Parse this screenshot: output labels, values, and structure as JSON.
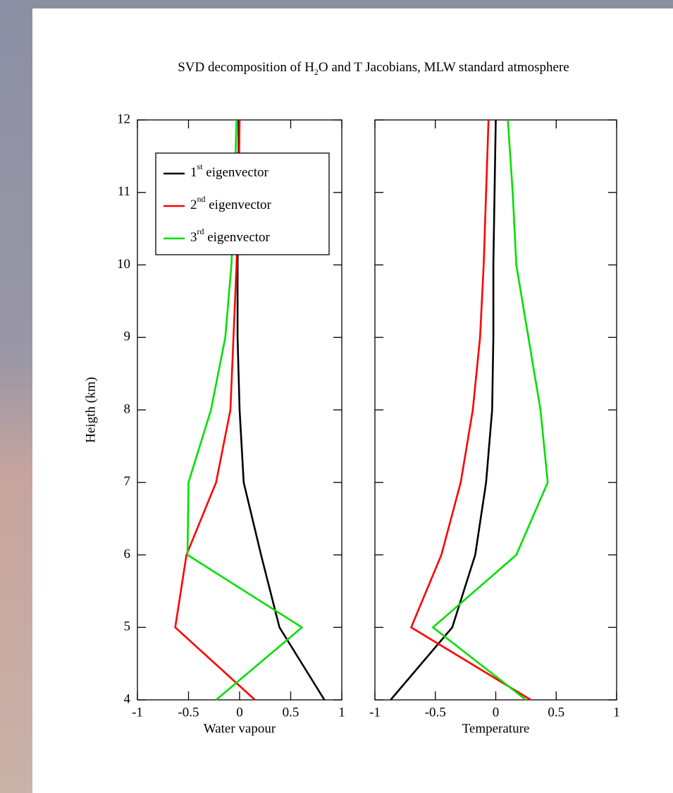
{
  "chart_data": [
    {
      "type": "line",
      "title": "SVD decomposition of H2O and T Jacobians, MLW standard atmosphere",
      "ylabel": "Heigth (km)",
      "xlabel": "Water vapour",
      "legend": "upper left",
      "y": [
        4,
        5,
        6,
        7,
        8,
        9,
        10,
        11,
        12
      ],
      "series": [
        {
          "name": "1st eigenvector",
          "color": "#000000",
          "values": [
            0.83,
            0.39,
            0.21,
            0.04,
            0,
            -0.02,
            -0.02,
            -0.01,
            -0.01
          ]
        },
        {
          "name": "2nd eigenvector",
          "color": "#ff0000",
          "values": [
            0.15,
            -0.63,
            -0.52,
            -0.23,
            -0.09,
            -0.06,
            -0.03,
            -0.01,
            0
          ]
        },
        {
          "name": "3rd eigenvector",
          "color": "#00e000",
          "values": [
            -0.23,
            0.61,
            -0.51,
            -0.5,
            -0.28,
            -0.14,
            -0.08,
            -0.05,
            -0.03
          ]
        }
      ],
      "xlim": [
        -1,
        1
      ],
      "xticks": [
        -1,
        -0.5,
        0,
        0.5,
        1
      ],
      "ylim": [
        4,
        12
      ],
      "yticks": [
        4,
        5,
        6,
        7,
        8,
        9,
        10,
        11,
        12
      ]
    },
    {
      "type": "line",
      "xlabel": "Temperature",
      "y": [
        4,
        5,
        6,
        7,
        8,
        9,
        10,
        11,
        12
      ],
      "series": [
        {
          "color": "#000000",
          "values": [
            -0.87,
            -0.36,
            -0.17,
            -0.08,
            -0.03,
            -0.02,
            -0.02,
            -0.01,
            0
          ]
        },
        {
          "color": "#ff0000",
          "values": [
            0.29,
            -0.7,
            -0.45,
            -0.29,
            -0.19,
            -0.13,
            -0.1,
            -0.08,
            -0.06
          ]
        },
        {
          "color": "#00e000",
          "values": [
            0.25,
            -0.52,
            0.17,
            0.43,
            0.37,
            0.27,
            0.17,
            0.14,
            0.1
          ]
        }
      ],
      "xlim": [
        -1,
        1
      ],
      "xticks": [
        -1,
        -0.5,
        0,
        0.5,
        1
      ],
      "ylim": [
        4,
        12
      ],
      "yticks": [
        4,
        5,
        6,
        7,
        8,
        9,
        10,
        11,
        12
      ],
      "ytick_labels": false
    }
  ]
}
